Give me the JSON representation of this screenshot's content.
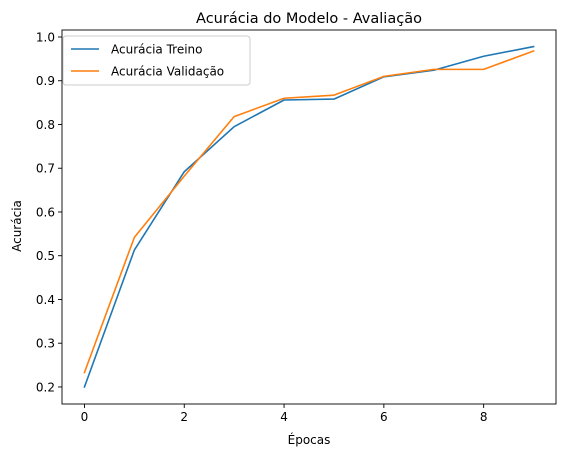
{
  "chart_data": {
    "type": "line",
    "title": "Acurácia do Modelo - Avaliação",
    "xlabel": "Épocas",
    "ylabel": "Acurácia",
    "xlim": [
      -0.45,
      9.45
    ],
    "ylim": [
      0.161,
      1.016
    ],
    "xticks": [
      0,
      2,
      4,
      6,
      8
    ],
    "yticks": [
      0.2,
      0.3,
      0.4,
      0.5,
      0.6,
      0.7,
      0.8,
      0.9,
      1.0
    ],
    "grid": false,
    "legend_position": "upper-left",
    "series": [
      {
        "name": "Acurácia Treino",
        "color": "#1f77b4",
        "x": [
          0,
          1,
          2,
          3,
          4,
          5,
          6,
          7,
          8,
          9
        ],
        "y": [
          0.2,
          0.513,
          0.692,
          0.795,
          0.856,
          0.858,
          0.909,
          0.924,
          0.956,
          0.978
        ]
      },
      {
        "name": "Acurácia Validação",
        "color": "#ff7f0e",
        "x": [
          0,
          1,
          2,
          3,
          4,
          5,
          6,
          7,
          8,
          9
        ],
        "y": [
          0.233,
          0.542,
          0.682,
          0.818,
          0.86,
          0.867,
          0.91,
          0.926,
          0.926,
          0.968
        ]
      }
    ]
  }
}
